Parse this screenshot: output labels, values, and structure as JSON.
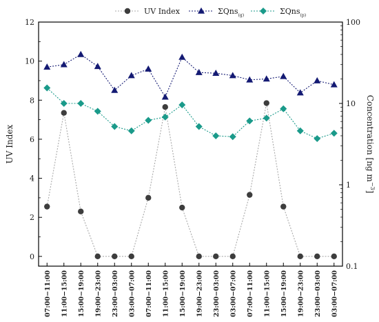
{
  "chart_data": {
    "type": "line",
    "categories": [
      "07:00−11:00",
      "11:00−15:00",
      "15:00−19:00",
      "19:00−23:00",
      "23:00−03:00",
      "03:00−07:00",
      "07:00−11:00",
      "11:00−15:00",
      "15:00−19:00",
      "19:00−23:00",
      "23:00−03:00",
      "03:00−07:00",
      "07:00−11:00",
      "11:00−15:00",
      "15:00−19:00",
      "19:00−23:00",
      "23:00−03:00",
      "03:00−07:00"
    ],
    "y_left": {
      "label": "UV  Index",
      "lim": [
        -0.5,
        12
      ],
      "ticks": [
        0,
        2,
        4,
        6,
        8,
        10,
        12
      ]
    },
    "y_right": {
      "label_prefix": "Concentration [ng m",
      "label_sup": "−3",
      "label_suffix": "]",
      "scale": "log",
      "lim": [
        0.1,
        100
      ],
      "ticks": [
        0.1,
        1,
        10,
        100
      ],
      "tick_labels": [
        "0.1",
        "1",
        "10",
        "100"
      ]
    },
    "series": [
      {
        "name": "UV  Index",
        "axis": "left",
        "marker": "circle",
        "color": "#3d3d3d",
        "line_color": "#a8a8a8",
        "values": [
          2.55,
          7.35,
          2.3,
          0,
          0,
          0,
          3.0,
          7.65,
          2.5,
          0,
          0,
          0,
          3.15,
          7.85,
          2.55,
          0,
          0,
          0
        ]
      },
      {
        "name": "ΣQns",
        "name_sub": "(g)",
        "axis": "right",
        "marker": "triangle",
        "color": "#141a73",
        "values": [
          28.0,
          30.0,
          40.0,
          28.5,
          14.5,
          22.0,
          26.5,
          12.0,
          37.0,
          24.0,
          23.5,
          22.0,
          19.5,
          20.0,
          21.5,
          13.5,
          19.0,
          17.0
        ]
      },
      {
        "name": "ΣQns",
        "name_sub": "(p)",
        "axis": "right",
        "marker": "diamond",
        "color": "#1a9a8a",
        "values": [
          15.5,
          10.0,
          10.0,
          8.0,
          5.2,
          4.6,
          6.2,
          6.8,
          9.6,
          5.2,
          4.0,
          3.9,
          6.1,
          6.6,
          8.6,
          4.6,
          3.7,
          4.3
        ]
      }
    ],
    "grid": false,
    "legend_position": "top"
  }
}
